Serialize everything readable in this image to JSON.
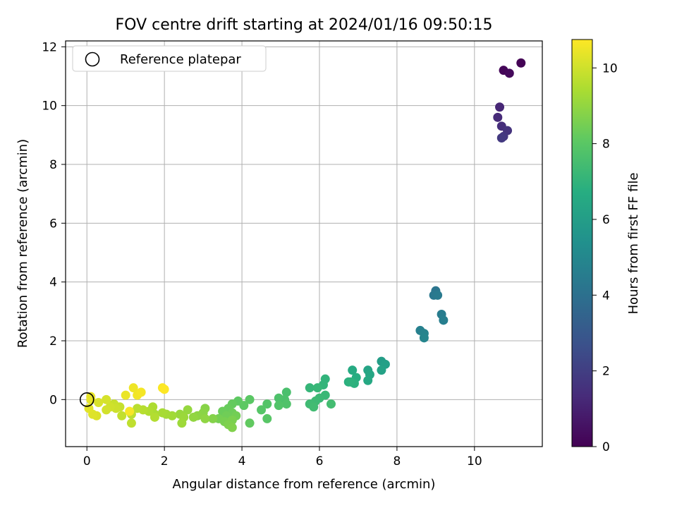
{
  "chart_data": {
    "type": "scatter",
    "title": "FOV centre drift starting at 2024/01/16 09:50:15",
    "xlabel": "Angular distance from reference (arcmin)",
    "ylabel": "Rotation from reference (arcmin)",
    "xlim": [
      -0.55,
      11.75
    ],
    "ylim": [
      -1.6,
      12.2
    ],
    "xticks": [
      0,
      2,
      4,
      6,
      8,
      10
    ],
    "yticks": [
      0,
      2,
      4,
      6,
      8,
      10,
      12
    ],
    "grid": true,
    "legend": {
      "placement": "top-left",
      "entries": [
        "Reference platepar"
      ]
    },
    "reference_point": {
      "x": 0,
      "y": 0
    },
    "colorbar": {
      "label": "Hours from first FF file",
      "range": [
        0,
        10.75
      ],
      "ticks": [
        0,
        2,
        4,
        6,
        8,
        10
      ],
      "colormap": "viridis"
    },
    "points": [
      {
        "x": 11.2,
        "y": 11.45,
        "c": 0.05
      },
      {
        "x": 10.75,
        "y": 11.2,
        "c": 0.15
      },
      {
        "x": 10.9,
        "y": 11.1,
        "c": 0.25
      },
      {
        "x": 10.65,
        "y": 9.95,
        "c": 1.2
      },
      {
        "x": 10.6,
        "y": 9.6,
        "c": 1.3
      },
      {
        "x": 10.7,
        "y": 9.3,
        "c": 1.4
      },
      {
        "x": 10.85,
        "y": 9.15,
        "c": 1.6
      },
      {
        "x": 10.75,
        "y": 8.95,
        "c": 1.7
      },
      {
        "x": 10.7,
        "y": 8.9,
        "c": 1.8
      },
      {
        "x": 9.0,
        "y": 3.7,
        "c": 4.2
      },
      {
        "x": 8.95,
        "y": 3.55,
        "c": 4.3
      },
      {
        "x": 9.05,
        "y": 3.55,
        "c": 4.4
      },
      {
        "x": 9.15,
        "y": 2.9,
        "c": 4.5
      },
      {
        "x": 9.2,
        "y": 2.7,
        "c": 4.6
      },
      {
        "x": 8.6,
        "y": 2.35,
        "c": 4.7
      },
      {
        "x": 8.7,
        "y": 2.25,
        "c": 4.8
      },
      {
        "x": 8.7,
        "y": 2.1,
        "c": 4.9
      },
      {
        "x": 7.6,
        "y": 1.3,
        "c": 6.0
      },
      {
        "x": 7.7,
        "y": 1.2,
        "c": 6.1
      },
      {
        "x": 7.6,
        "y": 1.0,
        "c": 6.2
      },
      {
        "x": 7.25,
        "y": 1.0,
        "c": 6.3
      },
      {
        "x": 7.3,
        "y": 0.85,
        "c": 6.4
      },
      {
        "x": 7.25,
        "y": 0.65,
        "c": 6.5
      },
      {
        "x": 6.85,
        "y": 1.0,
        "c": 6.6
      },
      {
        "x": 6.95,
        "y": 0.75,
        "c": 6.7
      },
      {
        "x": 6.75,
        "y": 0.6,
        "c": 6.8
      },
      {
        "x": 6.9,
        "y": 0.55,
        "c": 6.85
      },
      {
        "x": 6.8,
        "y": 0.6,
        "c": 6.9
      },
      {
        "x": 6.15,
        "y": 0.7,
        "c": 7.0
      },
      {
        "x": 6.1,
        "y": 0.5,
        "c": 7.05
      },
      {
        "x": 5.75,
        "y": 0.4,
        "c": 7.1
      },
      {
        "x": 5.95,
        "y": 0.4,
        "c": 7.15
      },
      {
        "x": 6.15,
        "y": 0.15,
        "c": 7.2
      },
      {
        "x": 6.0,
        "y": 0.05,
        "c": 7.25
      },
      {
        "x": 5.9,
        "y": -0.05,
        "c": 7.3
      },
      {
        "x": 5.75,
        "y": -0.15,
        "c": 7.35
      },
      {
        "x": 5.85,
        "y": -0.25,
        "c": 7.4
      },
      {
        "x": 6.3,
        "y": -0.15,
        "c": 7.45
      },
      {
        "x": 5.15,
        "y": 0.25,
        "c": 7.6
      },
      {
        "x": 5.1,
        "y": 0.0,
        "c": 7.65
      },
      {
        "x": 4.95,
        "y": 0.05,
        "c": 7.7
      },
      {
        "x": 5.15,
        "y": -0.15,
        "c": 7.75
      },
      {
        "x": 4.95,
        "y": -0.2,
        "c": 7.8
      },
      {
        "x": 4.65,
        "y": -0.15,
        "c": 7.85
      },
      {
        "x": 4.5,
        "y": -0.35,
        "c": 7.9
      },
      {
        "x": 4.65,
        "y": -0.65,
        "c": 7.95
      },
      {
        "x": 4.2,
        "y": 0.0,
        "c": 8.0
      },
      {
        "x": 4.05,
        "y": -0.2,
        "c": 8.05
      },
      {
        "x": 3.9,
        "y": -0.05,
        "c": 8.1
      },
      {
        "x": 4.2,
        "y": -0.8,
        "c": 8.15
      },
      {
        "x": 3.75,
        "y": -0.15,
        "c": 8.2
      },
      {
        "x": 3.65,
        "y": -0.3,
        "c": 8.25
      },
      {
        "x": 3.5,
        "y": -0.4,
        "c": 8.3
      },
      {
        "x": 3.75,
        "y": -0.45,
        "c": 8.35
      },
      {
        "x": 3.6,
        "y": -0.55,
        "c": 8.4
      },
      {
        "x": 3.85,
        "y": -0.55,
        "c": 8.45
      },
      {
        "x": 3.4,
        "y": -0.65,
        "c": 8.5
      },
      {
        "x": 3.55,
        "y": -0.75,
        "c": 8.55
      },
      {
        "x": 3.75,
        "y": -0.7,
        "c": 8.6
      },
      {
        "x": 3.65,
        "y": -0.85,
        "c": 8.65
      },
      {
        "x": 3.75,
        "y": -0.95,
        "c": 8.7
      },
      {
        "x": 3.25,
        "y": -0.65,
        "c": 8.75
      },
      {
        "x": 3.05,
        "y": -0.3,
        "c": 8.8
      },
      {
        "x": 3.0,
        "y": -0.45,
        "c": 8.85
      },
      {
        "x": 2.85,
        "y": -0.55,
        "c": 8.9
      },
      {
        "x": 3.05,
        "y": -0.65,
        "c": 8.95
      },
      {
        "x": 2.75,
        "y": -0.6,
        "c": 9.0
      },
      {
        "x": 2.6,
        "y": -0.35,
        "c": 9.05
      },
      {
        "x": 2.4,
        "y": -0.5,
        "c": 9.1
      },
      {
        "x": 2.5,
        "y": -0.6,
        "c": 9.15
      },
      {
        "x": 2.45,
        "y": -0.8,
        "c": 9.2
      },
      {
        "x": 2.2,
        "y": -0.55,
        "c": 9.25
      },
      {
        "x": 2.05,
        "y": -0.5,
        "c": 9.3
      },
      {
        "x": 1.95,
        "y": -0.45,
        "c": 9.35
      },
      {
        "x": 1.75,
        "y": -0.5,
        "c": 9.4
      },
      {
        "x": 1.7,
        "y": -0.25,
        "c": 9.45
      },
      {
        "x": 1.6,
        "y": -0.4,
        "c": 9.5
      },
      {
        "x": 1.75,
        "y": -0.6,
        "c": 9.55
      },
      {
        "x": 1.45,
        "y": -0.35,
        "c": 9.6
      },
      {
        "x": 1.3,
        "y": -0.3,
        "c": 9.65
      },
      {
        "x": 1.15,
        "y": -0.5,
        "c": 9.7
      },
      {
        "x": 1.15,
        "y": -0.8,
        "c": 9.75
      },
      {
        "x": 0.9,
        "y": -0.55,
        "c": 9.8
      },
      {
        "x": 0.85,
        "y": -0.25,
        "c": 9.85
      },
      {
        "x": 0.7,
        "y": -0.15,
        "c": 9.9
      },
      {
        "x": 0.75,
        "y": -0.3,
        "c": 9.95
      },
      {
        "x": 0.6,
        "y": -0.25,
        "c": 10.0
      },
      {
        "x": 0.5,
        "y": -0.35,
        "c": 10.05
      },
      {
        "x": 0.5,
        "y": 0.0,
        "c": 10.1
      },
      {
        "x": 0.3,
        "y": -0.1,
        "c": 10.15
      },
      {
        "x": 0.25,
        "y": -0.55,
        "c": 10.2
      },
      {
        "x": 0.15,
        "y": -0.5,
        "c": 10.25
      },
      {
        "x": 0.05,
        "y": -0.3,
        "c": 10.3
      },
      {
        "x": 0.1,
        "y": 0.0,
        "c": 10.35
      },
      {
        "x": 0.1,
        "y": 0.1,
        "c": 10.4
      },
      {
        "x": 1.0,
        "y": 0.15,
        "c": 10.45
      },
      {
        "x": 1.2,
        "y": 0.4,
        "c": 10.5
      },
      {
        "x": 1.3,
        "y": 0.15,
        "c": 10.55
      },
      {
        "x": 1.4,
        "y": 0.25,
        "c": 10.6
      },
      {
        "x": 1.1,
        "y": -0.4,
        "c": 10.65
      },
      {
        "x": 1.95,
        "y": 0.4,
        "c": 10.7
      },
      {
        "x": 2.0,
        "y": 0.35,
        "c": 10.75
      }
    ]
  }
}
